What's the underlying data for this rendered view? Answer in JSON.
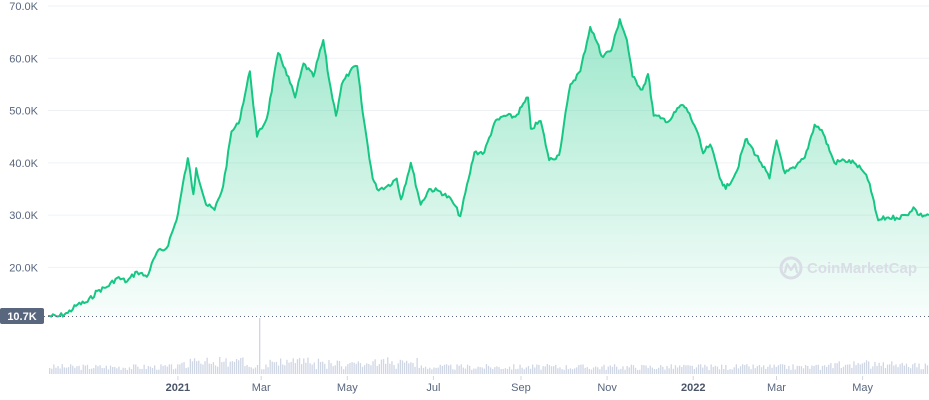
{
  "chart_data": {
    "type": "area",
    "y_axis": {
      "ticks": [
        20000,
        30000,
        40000,
        50000,
        60000,
        70000
      ],
      "tick_labels": [
        "20.0K",
        "30.0K",
        "40.0K",
        "50.0K",
        "60.0K",
        "70.0K"
      ],
      "range": [
        10700,
        70000
      ]
    },
    "x_axis": {
      "range": [
        "2020-10-01",
        "2022-06-17"
      ],
      "ticks": [
        {
          "date": "2021-01-01",
          "label": "2021",
          "bold": true
        },
        {
          "date": "2021-03-01",
          "label": "Mar",
          "bold": false
        },
        {
          "date": "2021-05-01",
          "label": "May",
          "bold": false
        },
        {
          "date": "2021-07-01",
          "label": "Jul",
          "bold": false
        },
        {
          "date": "2021-09-01",
          "label": "Sep",
          "bold": false
        },
        {
          "date": "2021-11-01",
          "label": "Nov",
          "bold": false
        },
        {
          "date": "2022-01-01",
          "label": "2022",
          "bold": true
        },
        {
          "date": "2022-03-01",
          "label": "Mar",
          "bold": false
        },
        {
          "date": "2022-05-01",
          "label": "May",
          "bold": false
        }
      ]
    },
    "baseline_label": "10.7K",
    "watermark": "CoinMarketCap",
    "colors": {
      "line": "#16c784",
      "fill": "#16c784",
      "volume": "#cfd6e4",
      "grid": "#eff2f5",
      "marker_bg": "#58667e"
    },
    "series": [
      {
        "points": [
          [
            "2020-10-01",
            10700
          ],
          [
            "2020-10-08",
            10600
          ],
          [
            "2020-10-15",
            11300
          ],
          [
            "2020-10-22",
            12900
          ],
          [
            "2020-10-29",
            13400
          ],
          [
            "2020-11-05",
            15500
          ],
          [
            "2020-11-12",
            16300
          ],
          [
            "2020-11-19",
            18000
          ],
          [
            "2020-11-26",
            17300
          ],
          [
            "2020-12-03",
            19200
          ],
          [
            "2020-12-10",
            18200
          ],
          [
            "2020-12-17",
            22800
          ],
          [
            "2020-12-24",
            23700
          ],
          [
            "2020-12-31",
            29000
          ],
          [
            "2021-01-08",
            40900
          ],
          [
            "2021-01-12",
            34000
          ],
          [
            "2021-01-14",
            39000
          ],
          [
            "2021-01-21",
            32000
          ],
          [
            "2021-01-27",
            31000
          ],
          [
            "2021-02-02",
            35500
          ],
          [
            "2021-02-08",
            46000
          ],
          [
            "2021-02-13",
            47500
          ],
          [
            "2021-02-21",
            57500
          ],
          [
            "2021-02-26",
            45000
          ],
          [
            "2021-03-05",
            48500
          ],
          [
            "2021-03-13",
            61000
          ],
          [
            "2021-03-18",
            58000
          ],
          [
            "2021-03-25",
            52500
          ],
          [
            "2021-03-31",
            59000
          ],
          [
            "2021-04-07",
            56500
          ],
          [
            "2021-04-14",
            63500
          ],
          [
            "2021-04-18",
            56000
          ],
          [
            "2021-04-23",
            49000
          ],
          [
            "2021-04-27",
            55000
          ],
          [
            "2021-05-03",
            57500
          ],
          [
            "2021-05-08",
            58500
          ],
          [
            "2021-05-12",
            49500
          ],
          [
            "2021-05-19",
            37000
          ],
          [
            "2021-05-22",
            35000
          ],
          [
            "2021-05-29",
            35500
          ],
          [
            "2021-06-05",
            37000
          ],
          [
            "2021-06-08",
            33000
          ],
          [
            "2021-06-15",
            40000
          ],
          [
            "2021-06-22",
            32000
          ],
          [
            "2021-06-28",
            35000
          ],
          [
            "2021-07-06",
            34500
          ],
          [
            "2021-07-14",
            32800
          ],
          [
            "2021-07-20",
            29800
          ],
          [
            "2021-07-26",
            37000
          ],
          [
            "2021-07-30",
            42000
          ],
          [
            "2021-08-06",
            42000
          ],
          [
            "2021-08-13",
            47500
          ],
          [
            "2021-08-20",
            49000
          ],
          [
            "2021-08-28",
            48800
          ],
          [
            "2021-09-06",
            52500
          ],
          [
            "2021-09-08",
            46500
          ],
          [
            "2021-09-15",
            48000
          ],
          [
            "2021-09-21",
            40500
          ],
          [
            "2021-09-28",
            41500
          ],
          [
            "2021-10-06",
            55000
          ],
          [
            "2021-10-13",
            57500
          ],
          [
            "2021-10-20",
            66000
          ],
          [
            "2021-10-25",
            63000
          ],
          [
            "2021-10-28",
            60500
          ],
          [
            "2021-11-04",
            61500
          ],
          [
            "2021-11-10",
            67500
          ],
          [
            "2021-11-15",
            63500
          ],
          [
            "2021-11-19",
            56500
          ],
          [
            "2021-11-26",
            54000
          ],
          [
            "2021-11-30",
            57000
          ],
          [
            "2021-12-04",
            49000
          ],
          [
            "2021-12-09",
            48500
          ],
          [
            "2021-12-15",
            48000
          ],
          [
            "2021-12-23",
            51000
          ],
          [
            "2021-12-27",
            50500
          ],
          [
            "2022-01-03",
            46500
          ],
          [
            "2022-01-08",
            41800
          ],
          [
            "2022-01-13",
            43500
          ],
          [
            "2022-01-21",
            36500
          ],
          [
            "2022-01-24",
            35000
          ],
          [
            "2022-02-01",
            38500
          ],
          [
            "2022-02-07",
            44500
          ],
          [
            "2022-02-10",
            43500
          ],
          [
            "2022-02-18",
            40000
          ],
          [
            "2022-02-24",
            37000
          ],
          [
            "2022-03-01",
            44300
          ],
          [
            "2022-03-07",
            38000
          ],
          [
            "2022-03-14",
            39000
          ],
          [
            "2022-03-21",
            41000
          ],
          [
            "2022-03-28",
            47300
          ],
          [
            "2022-04-02",
            46300
          ],
          [
            "2022-04-11",
            40000
          ],
          [
            "2022-04-18",
            40500
          ],
          [
            "2022-04-25",
            40000
          ],
          [
            "2022-05-01",
            38500
          ],
          [
            "2022-05-06",
            36000
          ],
          [
            "2022-05-10",
            31000
          ],
          [
            "2022-05-12",
            29000
          ],
          [
            "2022-05-18",
            29500
          ],
          [
            "2022-05-25",
            29500
          ],
          [
            "2022-06-01",
            30000
          ],
          [
            "2022-06-06",
            31500
          ],
          [
            "2022-06-10",
            30000
          ],
          [
            "2022-06-17",
            30000
          ]
        ]
      }
    ],
    "volume_peak_date": "2021-02-27"
  }
}
